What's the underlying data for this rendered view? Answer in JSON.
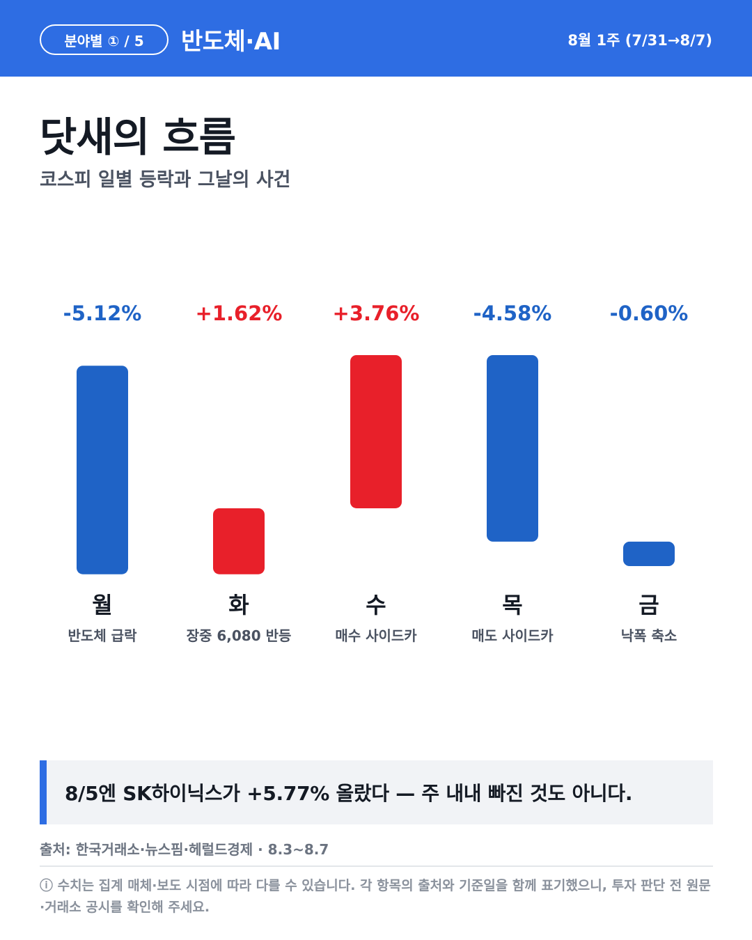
{
  "header": {
    "pill_label": "분야별 ① / 5",
    "section": "반도체·AI",
    "week": "8월 1주 (7/31→8/7)"
  },
  "title": "닷새의 흐름",
  "subtitle": "코스피 일별 등락과 그날의 사건",
  "colors": {
    "accent": "#2e6de3",
    "down": "#1f63c6",
    "up": "#e8202a"
  },
  "chart_data": {
    "type": "bar",
    "subtype": "waterfall",
    "categories": [
      "월",
      "화",
      "수",
      "목",
      "금"
    ],
    "values": [
      -5.12,
      1.62,
      3.76,
      -4.58,
      -0.6
    ],
    "value_labels": [
      "-5.12%",
      "+1.62%",
      "+3.76%",
      "-4.58%",
      "-0.60%"
    ],
    "events": [
      "반도체 급락",
      "장중 6,080 반등",
      "매수 사이드카",
      "매도 사이드카",
      "낙폭 축소"
    ],
    "ylabel": "",
    "xlabel": "",
    "grid": false
  },
  "callout": "8/5엔 SK하이닉스가 +5.77% 올랐다 — 주 내내 빠진 것도 아니다.",
  "source": "출처: 한국거래소·뉴스핌·헤럴드경제 · 8.3~8.7",
  "note": "ⓘ 수치는 집계 매체·보도 시점에 따라 다를 수 있습니다. 각 항목의 출처와 기준일을 함께 표기했으니, 투자 판단 전 원문·거래소 공시를 확인해 주세요."
}
